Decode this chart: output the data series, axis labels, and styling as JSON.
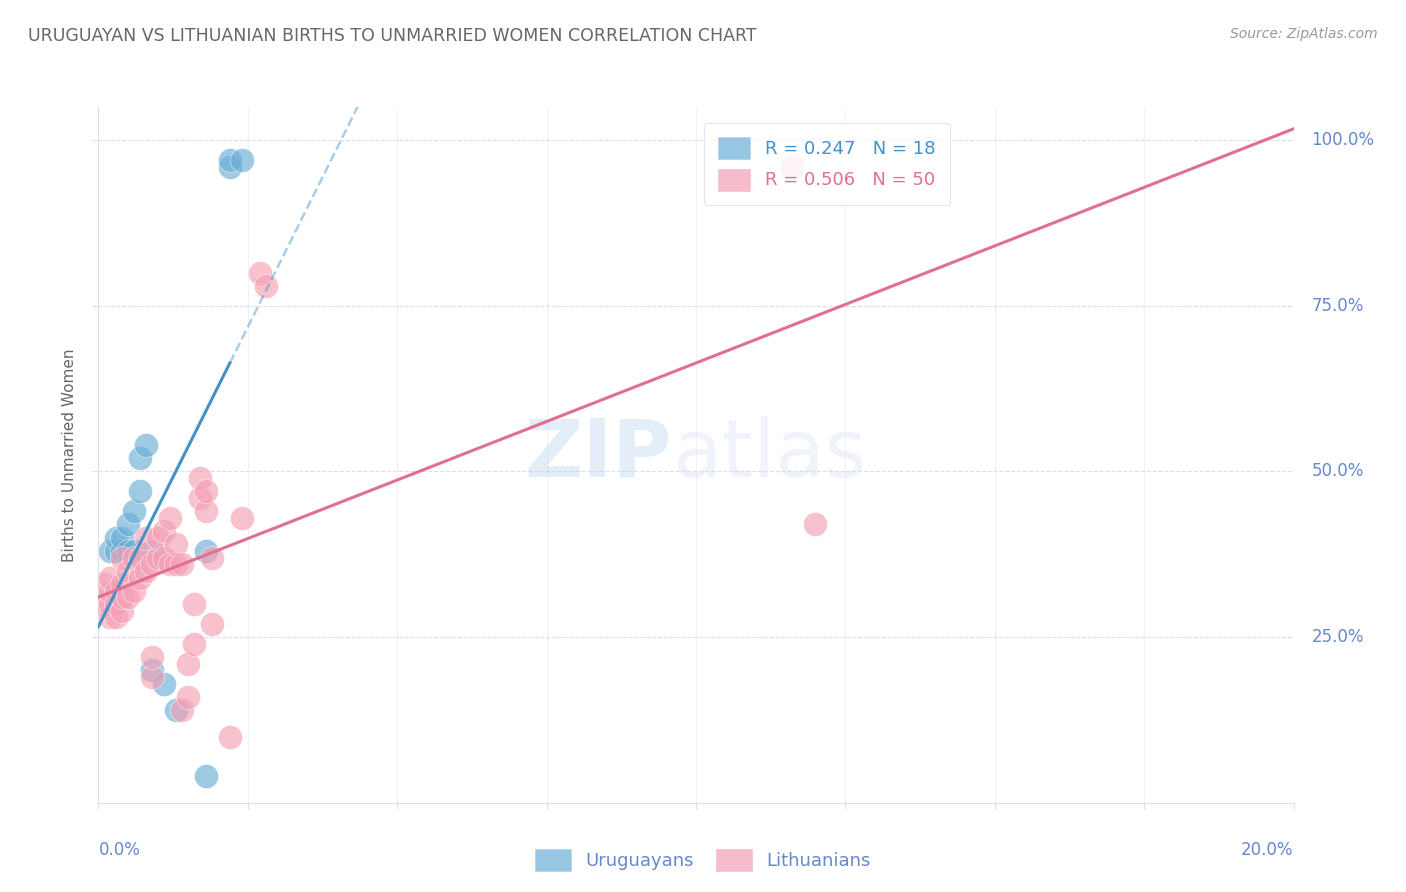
{
  "title": "URUGUAYAN VS LITHUANIAN BIRTHS TO UNMARRIED WOMEN CORRELATION CHART",
  "source": "Source: ZipAtlas.com",
  "ylabel": "Births to Unmarried Women",
  "y_ticks": [
    0.25,
    0.5,
    0.75,
    1.0
  ],
  "y_tick_labels": [
    "25.0%",
    "50.0%",
    "75.0%",
    "100.0%"
  ],
  "uruguayan_color": "#6baed6",
  "lithuanian_color": "#f4a0b5",
  "uruguayan_line_color": "#4292c6",
  "lithuanian_line_color": "#e07090",
  "watermark_zip": "ZIP",
  "watermark_atlas": "atlas",
  "uruguayan_points": [
    [
      0.002,
      0.38
    ],
    [
      0.003,
      0.38
    ],
    [
      0.003,
      0.4
    ],
    [
      0.004,
      0.38
    ],
    [
      0.004,
      0.4
    ],
    [
      0.005,
      0.38
    ],
    [
      0.005,
      0.42
    ],
    [
      0.006,
      0.38
    ],
    [
      0.006,
      0.44
    ],
    [
      0.007,
      0.47
    ],
    [
      0.007,
      0.52
    ],
    [
      0.008,
      0.54
    ],
    [
      0.009,
      0.38
    ],
    [
      0.009,
      0.2
    ],
    [
      0.011,
      0.18
    ],
    [
      0.013,
      0.14
    ],
    [
      0.018,
      0.38
    ],
    [
      0.018,
      0.04
    ],
    [
      0.022,
      0.96
    ],
    [
      0.022,
      0.97
    ],
    [
      0.024,
      0.97
    ]
  ],
  "lithuanian_points": [
    [
      0.001,
      0.3
    ],
    [
      0.001,
      0.33
    ],
    [
      0.002,
      0.28
    ],
    [
      0.002,
      0.3
    ],
    [
      0.002,
      0.32
    ],
    [
      0.002,
      0.34
    ],
    [
      0.003,
      0.28
    ],
    [
      0.003,
      0.3
    ],
    [
      0.003,
      0.32
    ],
    [
      0.004,
      0.29
    ],
    [
      0.004,
      0.31
    ],
    [
      0.004,
      0.33
    ],
    [
      0.004,
      0.37
    ],
    [
      0.005,
      0.31
    ],
    [
      0.005,
      0.35
    ],
    [
      0.006,
      0.32
    ],
    [
      0.006,
      0.37
    ],
    [
      0.007,
      0.34
    ],
    [
      0.007,
      0.37
    ],
    [
      0.008,
      0.35
    ],
    [
      0.008,
      0.4
    ],
    [
      0.009,
      0.36
    ],
    [
      0.009,
      0.19
    ],
    [
      0.009,
      0.22
    ],
    [
      0.01,
      0.37
    ],
    [
      0.01,
      0.4
    ],
    [
      0.011,
      0.37
    ],
    [
      0.011,
      0.41
    ],
    [
      0.012,
      0.36
    ],
    [
      0.012,
      0.43
    ],
    [
      0.013,
      0.36
    ],
    [
      0.013,
      0.39
    ],
    [
      0.014,
      0.36
    ],
    [
      0.014,
      0.14
    ],
    [
      0.015,
      0.16
    ],
    [
      0.015,
      0.21
    ],
    [
      0.016,
      0.24
    ],
    [
      0.016,
      0.3
    ],
    [
      0.017,
      0.46
    ],
    [
      0.017,
      0.49
    ],
    [
      0.018,
      0.44
    ],
    [
      0.018,
      0.47
    ],
    [
      0.019,
      0.27
    ],
    [
      0.019,
      0.37
    ],
    [
      0.022,
      0.1
    ],
    [
      0.024,
      0.43
    ],
    [
      0.027,
      0.8
    ],
    [
      0.028,
      0.78
    ],
    [
      0.116,
      0.96
    ],
    [
      0.12,
      0.42
    ]
  ],
  "xmin": 0.0,
  "xmax": 0.2,
  "ymin": 0.0,
  "ymax": 1.05,
  "title_color": "#666666",
  "source_color": "#999999",
  "axis_color": "#6688cc",
  "grid_color": "#ddddee",
  "background_color": "#ffffff"
}
